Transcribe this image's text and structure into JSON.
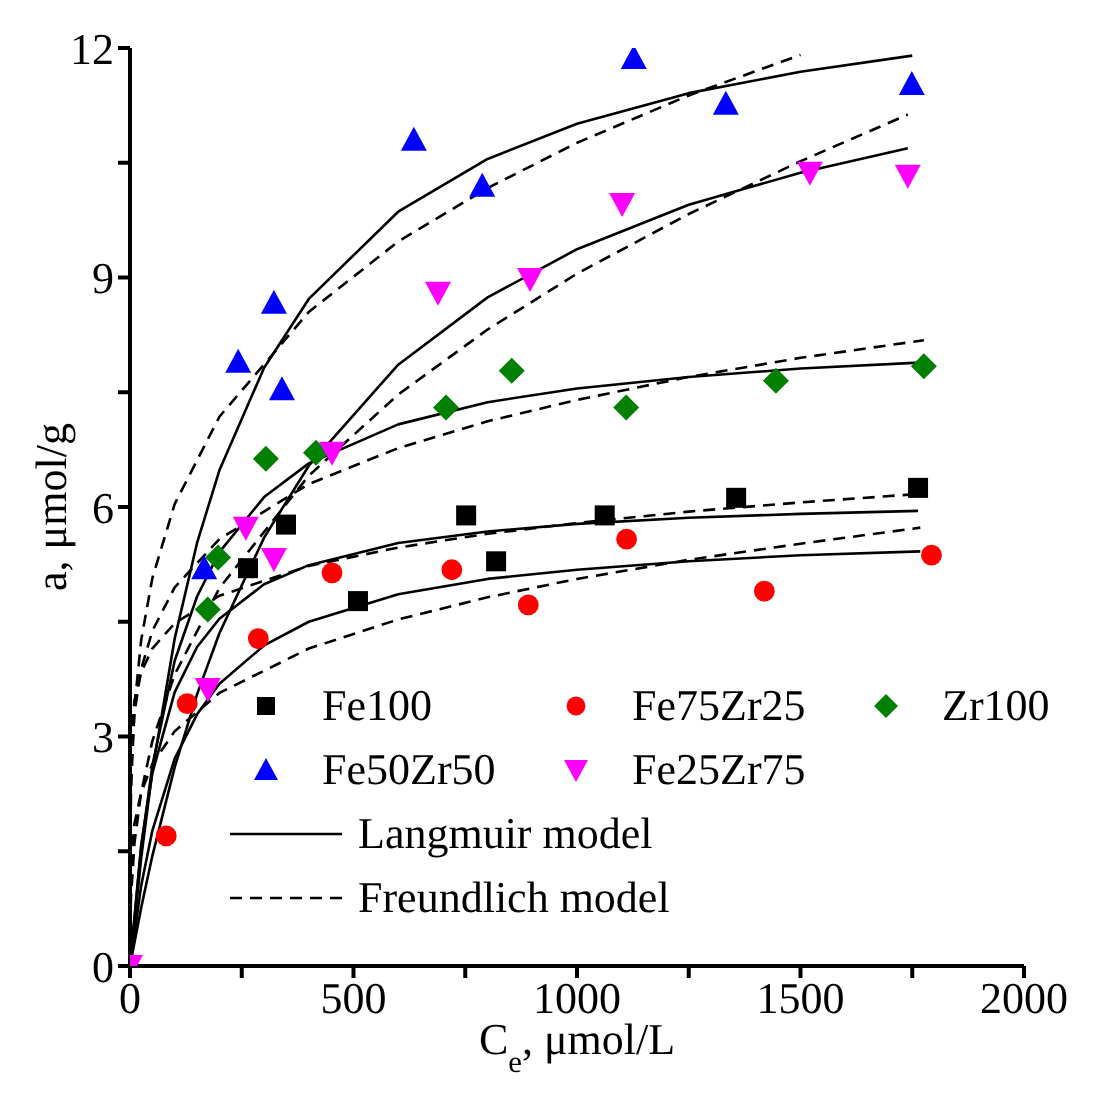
{
  "chart_data": {
    "type": "scatter",
    "xlabel": "C$_{e}$, μmol/L",
    "ylabel": "a, μmol/g",
    "xlim": [
      0,
      2000
    ],
    "xticks": [
      0,
      {
        "value": 250,
        "label": null
      },
      500,
      {
        "value": 750,
        "label": null
      },
      1000,
      {
        "value": 1250,
        "label": null
      },
      1500,
      {
        "value": 1750,
        "label": null
      },
      2000
    ],
    "ylim": [
      0,
      12
    ],
    "yticks": [
      0,
      {
        "value": 1.5,
        "label": null
      },
      3,
      {
        "value": 4.5,
        "label": null
      },
      6,
      {
        "value": 7.5,
        "label": null
      },
      9,
      {
        "value": 10.5,
        "label": null
      },
      12
    ],
    "grid": false,
    "legend": "bottom right",
    "series": [
      {
        "name": "Fe100",
        "marker": "square",
        "color": "#000000",
        "x": [
          264,
          349,
          510,
          752,
          819,
          1062,
          1356,
          1763
        ],
        "values": [
          5.2,
          5.77,
          4.77,
          5.89,
          5.29,
          5.89,
          6.12,
          6.25
        ]
      },
      {
        "name": "Fe75Zr25",
        "marker": "circle",
        "color": "#ff0000",
        "x": [
          81,
          128,
          287,
          452,
          720,
          891,
          1111,
          1419,
          1793
        ],
        "values": [
          1.7,
          3.43,
          4.28,
          5.14,
          5.18,
          4.72,
          5.58,
          4.9,
          5.37
        ]
      },
      {
        "name": "Zr100",
        "marker": "diamond",
        "color": "#008000",
        "x": [
          174,
          197,
          304,
          416,
          707,
          854,
          1110,
          1445,
          1776
        ],
        "values": [
          4.66,
          5.34,
          6.63,
          6.71,
          7.3,
          7.78,
          7.3,
          7.65,
          7.84
        ]
      },
      {
        "name": "Fe50Zr50",
        "marker": "triangle",
        "color": "#0000ff",
        "x": [
          166,
          242,
          322,
          340,
          635,
          788,
          1127,
          1333,
          1749
        ],
        "values": [
          5.2,
          7.9,
          8.67,
          7.54,
          10.8,
          10.2,
          11.87,
          11.27,
          11.53
        ]
      },
      {
        "name": "Fe25Zr75",
        "marker": "triangle-down",
        "color": "#ff00ff",
        "x": [
          0,
          174,
          259,
          322,
          452,
          689,
          895,
          1101,
          1521,
          1740
        ],
        "values": [
          0,
          3.62,
          5.73,
          5.32,
          6.71,
          8.8,
          8.98,
          9.96,
          10.37,
          10.33
        ]
      },
      {
        "name": "Langmuir model",
        "type": "line",
        "line_style": "solid",
        "marker": "none",
        "color": "#000000",
        "x": [
          0,
          25,
          50,
          100,
          150,
          200,
          300,
          400,
          600,
          800,
          1000,
          1250,
          1500,
          1750
        ],
        "values": [
          0,
          1.41,
          2.55,
          4.28,
          5.53,
          6.48,
          7.82,
          8.72,
          9.86,
          10.55,
          11.01,
          11.41,
          11.69,
          11.9
        ]
      },
      {
        "type": "line",
        "line_style": "solid",
        "marker": "none",
        "color": "#000000",
        "x": [
          0,
          25,
          50,
          100,
          150,
          200,
          300,
          400,
          600,
          800,
          1000,
          1250,
          1500,
          1740
        ],
        "values": [
          0,
          0.76,
          1.44,
          2.6,
          3.55,
          4.35,
          5.6,
          6.54,
          7.86,
          8.74,
          9.37,
          9.95,
          10.37,
          10.69
        ]
      },
      {
        "type": "line",
        "line_style": "solid",
        "marker": "none",
        "color": "#000000",
        "x": [
          0,
          25,
          50,
          100,
          150,
          200,
          300,
          400,
          600,
          800,
          1000,
          1250,
          1500,
          1776
        ],
        "values": [
          0,
          1.55,
          2.62,
          3.99,
          4.83,
          5.41,
          6.13,
          6.57,
          7.08,
          7.37,
          7.55,
          7.7,
          7.81,
          7.89
        ]
      },
      {
        "type": "line",
        "line_style": "solid",
        "marker": "none",
        "color": "#000000",
        "x": [
          0,
          25,
          50,
          100,
          150,
          200,
          300,
          400,
          600,
          800,
          1000,
          1250,
          1500,
          1763
        ],
        "values": [
          0,
          1.58,
          2.52,
          3.58,
          4.17,
          4.54,
          4.99,
          5.24,
          5.53,
          5.68,
          5.78,
          5.86,
          5.91,
          5.95
        ]
      },
      {
        "type": "line",
        "line_style": "solid",
        "marker": "none",
        "color": "#000000",
        "x": [
          0,
          25,
          50,
          100,
          150,
          200,
          300,
          400,
          600,
          800,
          1000,
          1250,
          1500,
          1768
        ],
        "values": [
          0,
          1.05,
          1.77,
          2.71,
          3.29,
          3.69,
          4.19,
          4.5,
          4.86,
          5.06,
          5.18,
          5.29,
          5.37,
          5.42
        ]
      },
      {
        "name": "Freundlich model",
        "type": "line",
        "line_style": "dashed",
        "marker": "none",
        "color": "#000000",
        "x": [
          0,
          2,
          10,
          25,
          50,
          100,
          200,
          400,
          600,
          800,
          1000,
          1250,
          1500
        ],
        "values": [
          0,
          2.26,
          3.39,
          4.26,
          5.07,
          6.04,
          7.18,
          8.55,
          9.47,
          10.17,
          10.76,
          11.38,
          11.91
        ]
      },
      {
        "type": "line",
        "line_style": "dashed",
        "marker": "none",
        "color": "#000000",
        "x": [
          0,
          2,
          10,
          25,
          50,
          100,
          200,
          400,
          600,
          800,
          1000,
          1250,
          1500,
          1740
        ],
        "values": [
          0,
          0.88,
          1.61,
          2.27,
          2.94,
          3.81,
          4.94,
          6.41,
          7.47,
          8.32,
          9.05,
          9.83,
          10.52,
          11.13
        ]
      },
      {
        "type": "line",
        "line_style": "dashed",
        "marker": "none",
        "color": "#000000",
        "x": [
          0,
          2,
          10,
          25,
          50,
          100,
          200,
          400,
          600,
          800,
          1000,
          1250,
          1500,
          1776
        ],
        "values": [
          0,
          2.49,
          3.31,
          3.88,
          4.38,
          4.95,
          5.58,
          6.3,
          6.77,
          7.12,
          7.4,
          7.7,
          7.95,
          8.18
        ]
      },
      {
        "type": "line",
        "line_style": "dashed",
        "marker": "none",
        "color": "#000000",
        "x": [
          0,
          2,
          10,
          25,
          50,
          100,
          200,
          400,
          600,
          800,
          1000,
          1250,
          1500,
          1763
        ],
        "values": [
          0,
          2.91,
          3.47,
          3.84,
          4.15,
          4.48,
          4.84,
          5.23,
          5.47,
          5.65,
          5.79,
          5.94,
          6.06,
          6.17
        ]
      },
      {
        "type": "line",
        "line_style": "dashed",
        "marker": "none",
        "color": "#000000",
        "x": [
          0,
          2,
          10,
          25,
          50,
          100,
          200,
          400,
          600,
          800,
          1000,
          1250,
          1500,
          1768
        ],
        "values": [
          0,
          1.31,
          1.86,
          2.27,
          2.64,
          3.07,
          3.57,
          4.15,
          4.53,
          4.82,
          5.06,
          5.31,
          5.52,
          5.73
        ]
      }
    ]
  }
}
